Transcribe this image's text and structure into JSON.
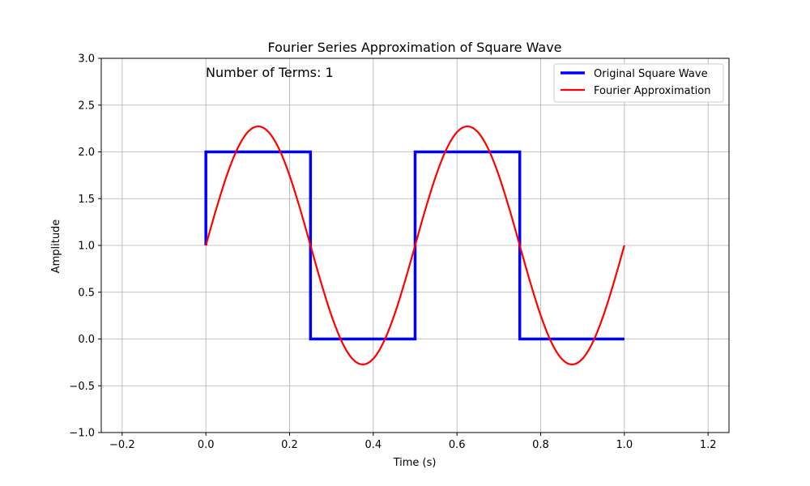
{
  "chart_data": {
    "type": "line",
    "title": "Fourier Series Approximation of Square Wave",
    "xlabel": "Time (s)",
    "ylabel": "Amplitude",
    "xlim": [
      -0.25,
      1.25
    ],
    "ylim": [
      -1.0,
      3.0
    ],
    "xticks": [
      -0.2,
      0.0,
      0.2,
      0.4,
      0.6,
      0.8,
      1.0,
      1.2
    ],
    "xtick_labels": [
      "−0.2",
      "0.0",
      "0.2",
      "0.4",
      "0.6",
      "0.8",
      "1.0",
      "1.2"
    ],
    "yticks": [
      -1.0,
      -0.5,
      0.0,
      0.5,
      1.0,
      1.5,
      2.0,
      2.5,
      3.0
    ],
    "ytick_labels": [
      "−1.0",
      "−0.5",
      "0.0",
      "0.5",
      "1.0",
      "1.5",
      "2.0",
      "2.5",
      "3.0"
    ],
    "grid": true,
    "legend_position": "top-right",
    "annotation": "Number of Terms: 1",
    "series": [
      {
        "name": "Original Square Wave",
        "color": "#0000ff",
        "x": [
          0.0,
          0.0,
          0.25,
          0.25,
          0.5,
          0.5,
          0.75,
          0.75,
          1.0
        ],
        "y": [
          1.0,
          2.0,
          2.0,
          0.0,
          0.0,
          2.0,
          2.0,
          0.0,
          0.0
        ]
      },
      {
        "name": "Fourier Approximation",
        "color": "#ff0000",
        "x": [
          0.0,
          0.025,
          0.05,
          0.075,
          0.1,
          0.125,
          0.15,
          0.175,
          0.2,
          0.225,
          0.25,
          0.275,
          0.3,
          0.325,
          0.35,
          0.375,
          0.4,
          0.425,
          0.45,
          0.475,
          0.5,
          0.525,
          0.55,
          0.575,
          0.6,
          0.625,
          0.65,
          0.675,
          0.7,
          0.725,
          0.75,
          0.775,
          0.8,
          0.825,
          0.85,
          0.875,
          0.9,
          0.925,
          0.95,
          0.975,
          1.0
        ],
        "y": [
          1.0,
          1.393,
          1.748,
          2.03,
          2.211,
          2.273,
          2.211,
          2.03,
          1.748,
          1.393,
          1.0,
          0.607,
          0.252,
          -0.03,
          -0.211,
          -0.273,
          -0.211,
          -0.03,
          0.252,
          0.607,
          1.0,
          1.393,
          1.748,
          2.03,
          2.211,
          2.273,
          2.211,
          2.03,
          1.748,
          1.393,
          1.0,
          0.607,
          0.252,
          -0.03,
          -0.211,
          -0.273,
          -0.211,
          -0.03,
          0.252,
          0.607,
          1.0
        ]
      }
    ]
  }
}
